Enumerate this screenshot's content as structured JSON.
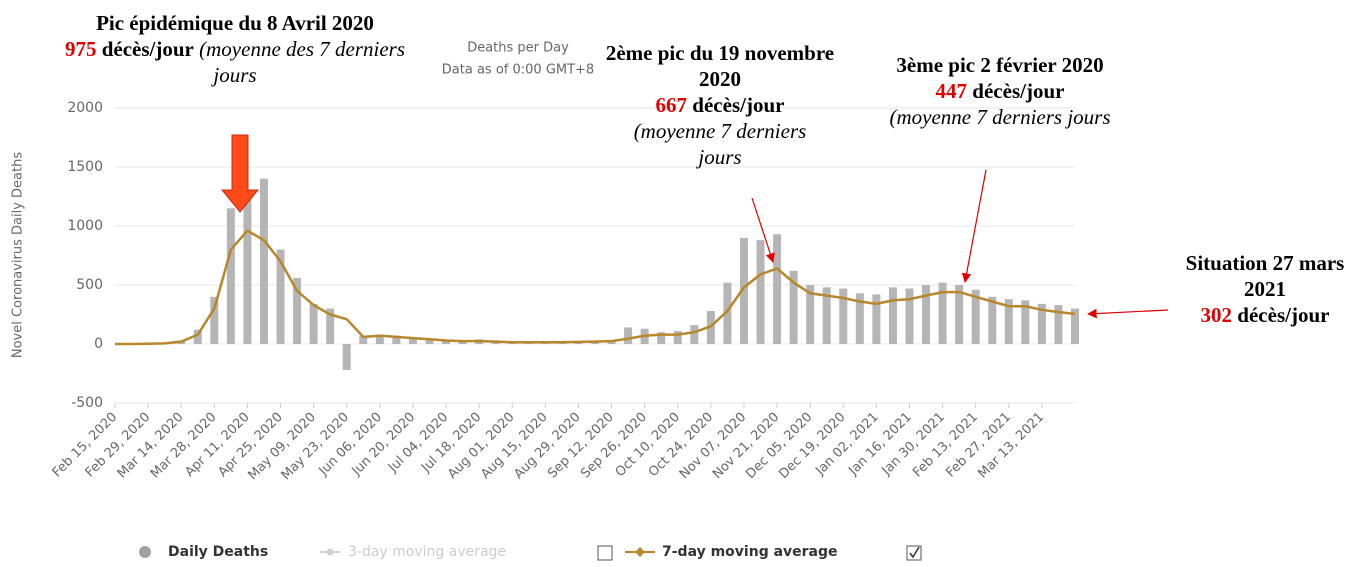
{
  "chart_data": {
    "type": "bar_line",
    "title": "Deaths per Day",
    "subtitle": "Data as of 0:00 GMT+8",
    "y_label": "Novel Coronavirus Daily Deaths",
    "ylim": [
      -500,
      2000
    ],
    "yticks": [
      -500,
      0,
      500,
      1000,
      1500,
      2000
    ],
    "grid": true,
    "categories": [
      "Feb 15, 2020",
      null,
      "Feb 29, 2020",
      null,
      "Mar 14, 2020",
      null,
      "Mar 28, 2020",
      null,
      "Apr 11, 2020",
      null,
      "Apr 25, 2020",
      null,
      "May 09, 2020",
      null,
      "May 23, 2020",
      null,
      "Jun 06, 2020",
      null,
      "Jun 20, 2020",
      null,
      "Jul 04, 2020",
      null,
      "Jul 18, 2020",
      null,
      "Aug 01, 2020",
      null,
      "Aug 15, 2020",
      null,
      "Aug 29, 2020",
      null,
      "Sep 12, 2020",
      null,
      "Sep 26, 2020",
      null,
      "Oct 10, 2020",
      null,
      "Oct 24, 2020",
      null,
      "Nov 07, 2020",
      null,
      "Nov 21, 2020",
      null,
      "Dec 05, 2020",
      null,
      "Dec 19, 2020",
      null,
      "Jan 02, 2021",
      null,
      "Jan 16, 2021",
      null,
      "Jan 30, 2021",
      null,
      "Feb 13, 2021",
      null,
      "Feb 27, 2021",
      null,
      "Mar 13, 2021",
      null,
      null
    ],
    "series": [
      {
        "name": "Daily Deaths",
        "color": "#b5b5b5",
        "kind": "bar",
        "values": [
          0,
          0,
          3,
          8,
          30,
          120,
          400,
          1150,
          1250,
          1400,
          800,
          560,
          340,
          300,
          -220,
          70,
          80,
          70,
          60,
          45,
          35,
          30,
          40,
          25,
          20,
          20,
          18,
          20,
          25,
          30,
          35,
          140,
          130,
          100,
          110,
          160,
          280,
          520,
          900,
          880,
          930,
          620,
          500,
          480,
          470,
          430,
          420,
          480,
          470,
          500,
          520,
          500,
          460,
          400,
          380,
          370,
          340,
          330,
          300
        ]
      },
      {
        "name": "7-day moving average",
        "color": "#b8862b",
        "kind": "line",
        "values": [
          0,
          0,
          2,
          5,
          20,
          80,
          300,
          800,
          960,
          880,
          700,
          450,
          330,
          250,
          210,
          60,
          70,
          60,
          50,
          40,
          30,
          25,
          25,
          20,
          15,
          15,
          15,
          15,
          18,
          20,
          25,
          45,
          70,
          80,
          80,
          100,
          150,
          280,
          480,
          590,
          640,
          520,
          430,
          410,
          390,
          360,
          340,
          370,
          380,
          410,
          440,
          440,
          400,
          360,
          320,
          320,
          290,
          270,
          255
        ]
      }
    ],
    "hidden_series": [
      {
        "name": "3-day moving average",
        "color": "#c8c8c8"
      }
    ],
    "annotations": [
      {
        "title": "Pic épidémique du 8 Avril 2020",
        "value": 975,
        "unit": "décès/jour",
        "note": "(moyenne des 7 derniers jours"
      },
      {
        "title": "2ème pic du 19 novembre 2020",
        "value": 667,
        "unit": "décès/jour",
        "note": "(moyenne 7 derniers jours"
      },
      {
        "title": "3ème pic 2 février 2020",
        "value": 447,
        "unit": "décès/jour",
        "note": "(moyenne 7 derniers jours"
      },
      {
        "title": "Situation 27 mars 2021",
        "value": 302,
        "unit": "décès/jour"
      }
    ]
  }
}
